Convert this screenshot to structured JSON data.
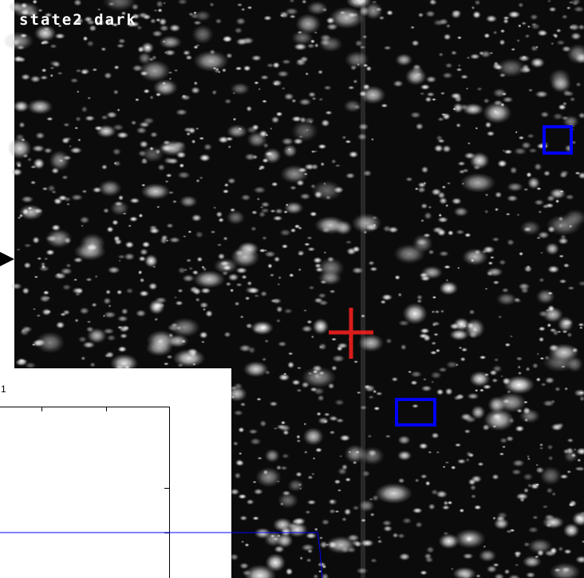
{
  "image": {
    "label": "state2 dark"
  },
  "inset": {
    "label": "1"
  }
}
